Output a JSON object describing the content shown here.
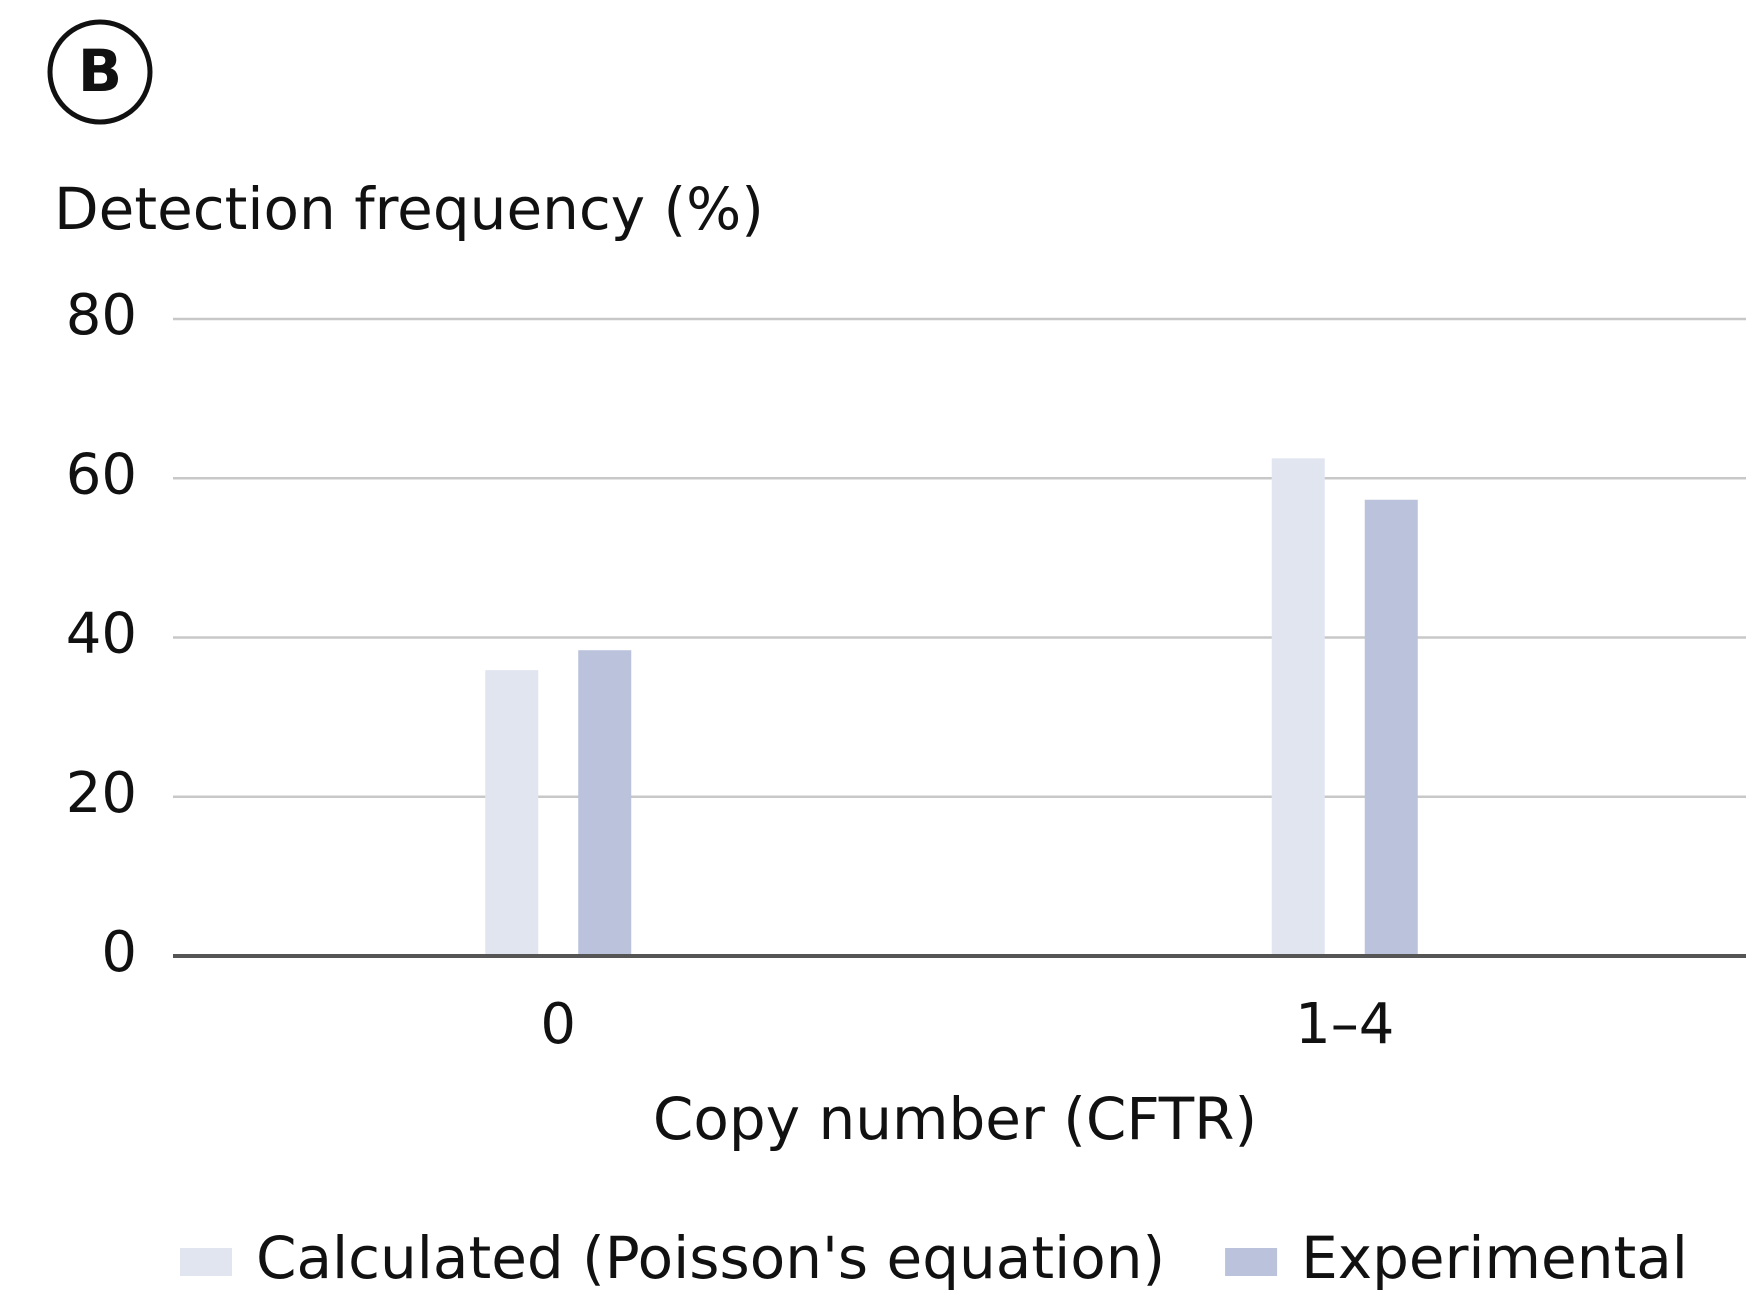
{
  "chart_data": {
    "type": "bar",
    "panel_label": "B",
    "y_axis_label": "Detection frequency (%)",
    "x_axis_label": "Copy number (CFTR)",
    "categories": [
      "0",
      "1–4"
    ],
    "series": [
      {
        "name": "Calculated (Poisson's equation)",
        "color": "#e1e5f0",
        "values": [
          35.9,
          62.5
        ]
      },
      {
        "name": "Experimental",
        "color": "#bac2dc",
        "values": [
          38.4,
          57.3
        ]
      }
    ],
    "ylim": [
      0,
      80
    ],
    "yticks": [
      0,
      20,
      40,
      60,
      80
    ],
    "grid": true,
    "legend": "bottom"
  }
}
